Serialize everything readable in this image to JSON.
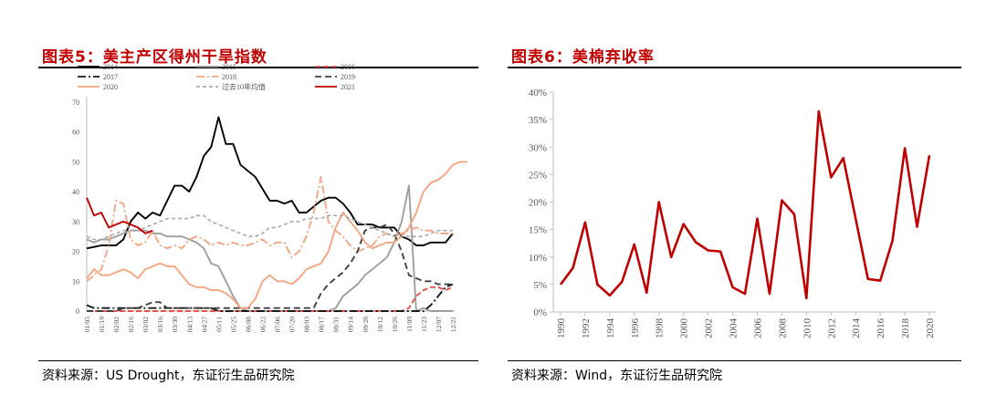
{
  "left": {
    "title": "图表5：美主产区得州干旱指数",
    "source": "资料来源：US Drought，东证衍生品研究院"
  },
  "right": {
    "title": "图表6：美棉弃收率",
    "source": "资料来源：Wind，东证衍生品研究院"
  },
  "chart_data": [
    {
      "type": "line",
      "title": "",
      "xlabel": "",
      "ylabel": "",
      "ylim": [
        0,
        70
      ],
      "yticks": [
        0,
        10,
        20,
        30,
        40,
        50,
        60,
        70
      ],
      "x_tick_labels": [
        "01/05",
        "01/19",
        "02/02",
        "02/16",
        "03/02",
        "03/16",
        "03/30",
        "04/13",
        "04/27",
        "05/11",
        "05/25",
        "06/08",
        "06/22",
        "07/06",
        "07/20",
        "08/03",
        "08/17",
        "08/31",
        "09/14",
        "09/28",
        "10/12",
        "10/26",
        "11/09",
        "11/23",
        "12/07",
        "12/21"
      ],
      "legend_position": "top",
      "grid": false,
      "series": [
        {
          "name": "2014",
          "color": "#000000",
          "dash": "solid",
          "values": [
            21,
            21.5,
            22,
            22,
            22,
            24,
            30,
            33,
            31,
            33,
            32,
            37,
            42,
            42,
            40,
            45,
            52,
            55,
            65,
            56,
            56,
            49,
            47,
            45,
            41,
            37,
            37,
            36,
            37,
            33,
            33,
            35,
            37,
            38,
            38,
            36,
            33,
            29,
            29,
            29,
            28,
            28,
            28,
            25,
            24,
            22,
            22,
            23,
            23,
            23,
            26
          ]
        },
        {
          "name": "2015",
          "color": "#9e9e9e",
          "dash": "solid",
          "values": [
            24,
            23,
            24,
            24,
            25,
            26,
            27,
            27,
            27,
            26,
            26,
            25,
            25,
            25,
            24,
            23,
            21,
            16,
            15,
            10,
            5,
            1,
            0,
            0,
            0,
            0,
            0,
            0,
            0,
            0,
            0,
            0,
            0,
            0,
            1,
            5,
            7,
            9,
            12,
            14,
            16,
            18,
            23,
            30,
            42,
            0,
            1,
            0,
            0,
            0,
            0
          ]
        },
        {
          "name": "2016",
          "color": "#e8524c",
          "dash": "6 3",
          "values": [
            0,
            0,
            0,
            0,
            0,
            0,
            0,
            0,
            0,
            0,
            0,
            0,
            0,
            0,
            0,
            0,
            0,
            0,
            0,
            0,
            0,
            0,
            0,
            0,
            0,
            0,
            0,
            0,
            0,
            0,
            0,
            0,
            0,
            0,
            0,
            0,
            0,
            0,
            0,
            0,
            0,
            0,
            0,
            0,
            1,
            5,
            7,
            8,
            8,
            7,
            8
          ]
        },
        {
          "name": "2017",
          "color": "#1a1a1a",
          "dash": "9 3 2 3",
          "values": [
            2,
            1,
            1,
            1,
            1,
            1,
            1,
            1,
            1,
            1,
            1,
            1,
            1,
            1,
            1,
            1,
            1,
            1,
            0,
            0,
            0,
            0,
            0,
            0,
            0,
            0,
            0,
            0,
            0,
            0,
            0,
            0,
            0,
            0,
            0,
            0,
            0,
            0,
            0,
            0,
            0,
            0,
            0,
            0,
            0,
            0,
            0,
            2,
            5,
            8,
            9
          ]
        },
        {
          "name": "2018",
          "color": "#f4a582",
          "dash": "9 3 2 3",
          "values": [
            10,
            12,
            14,
            22,
            37,
            36,
            24,
            22,
            23,
            27,
            22,
            21,
            22,
            21,
            24,
            25,
            24,
            22,
            23,
            22,
            23,
            22,
            22,
            23,
            24,
            22,
            23,
            23,
            18,
            20,
            25,
            33,
            45,
            30,
            27,
            25,
            22,
            20,
            21,
            22,
            25,
            26,
            25,
            26,
            27,
            28,
            27,
            27,
            26,
            26,
            26
          ]
        },
        {
          "name": "2019",
          "color": "#404040",
          "dash": "7 4",
          "values": [
            0,
            0,
            0,
            0,
            0,
            1,
            1,
            1,
            2,
            3,
            3,
            1,
            1,
            1,
            1,
            1,
            1,
            1,
            1,
            1,
            1,
            1,
            1,
            1,
            1,
            1,
            1,
            1,
            1,
            1,
            1,
            1,
            6,
            9,
            11,
            13,
            16,
            20,
            27,
            28,
            28,
            29,
            26,
            20,
            12,
            11,
            10,
            10,
            9,
            9,
            9
          ]
        },
        {
          "name": "2020",
          "color": "#f4a582",
          "dash": "solid",
          "values": [
            11,
            14,
            12,
            12,
            13,
            14,
            13,
            11,
            14,
            15,
            16,
            15,
            15,
            12,
            9,
            8,
            8,
            7,
            7,
            6,
            4,
            1,
            1,
            4,
            10,
            12,
            10,
            10,
            9,
            11,
            14,
            15,
            16,
            20,
            28,
            33,
            30,
            27,
            23,
            21,
            22,
            23,
            23,
            25,
            28,
            33,
            40,
            43,
            44,
            46,
            49,
            50,
            50
          ]
        },
        {
          "name": "过去10年均值",
          "color": "#a8a8a8",
          "dash": "4 3",
          "values": [
            25,
            24,
            24,
            25,
            26,
            27,
            27,
            27,
            28,
            29,
            30,
            31,
            31,
            31,
            31,
            32,
            32,
            30,
            29,
            28,
            27,
            26,
            25,
            25,
            26,
            28,
            28,
            29,
            30,
            30,
            31,
            31,
            31,
            32,
            32,
            32,
            31,
            30,
            29,
            28,
            27,
            26,
            25,
            25,
            25,
            25,
            25,
            26,
            27,
            27,
            27
          ]
        },
        {
          "name": "2021",
          "color": "#c00000",
          "dash": "solid",
          "values": [
            38,
            32,
            33,
            28,
            29,
            30,
            29,
            28,
            26,
            27
          ]
        }
      ]
    },
    {
      "type": "line",
      "title": "",
      "xlabel": "",
      "ylabel": "",
      "ylim": [
        0,
        40
      ],
      "ytick_labels": [
        "0%",
        "5%",
        "10%",
        "15%",
        "20%",
        "25%",
        "30%",
        "35%",
        "40%"
      ],
      "x_tick_labels": [
        "1990",
        "1992",
        "1994",
        "1996",
        "1998",
        "2000",
        "2002",
        "2004",
        "2006",
        "2008",
        "2010",
        "2012",
        "2014",
        "2016",
        "2018",
        "2020"
      ],
      "grid": false,
      "series": [
        {
          "color": "#c00000",
          "x": [
            1990,
            1991,
            1992,
            1993,
            1994,
            1995,
            1996,
            1997,
            1998,
            1999,
            2000,
            2001,
            2002,
            2003,
            2004,
            2005,
            2006,
            2007,
            2008,
            2009,
            2010,
            2011,
            2012,
            2013,
            2014,
            2015,
            2016,
            2017,
            2018,
            2019,
            2020
          ],
          "values": [
            5,
            8,
            16.3,
            5,
            3,
            5.5,
            12.3,
            3.5,
            20,
            10,
            16,
            12.7,
            11.2,
            11,
            4.5,
            3.3,
            17,
            3.3,
            20.3,
            17.8,
            2.5,
            36.5,
            24.5,
            28,
            17,
            6,
            5.7,
            13,
            29.8,
            15.5,
            28.5
          ]
        }
      ]
    }
  ]
}
